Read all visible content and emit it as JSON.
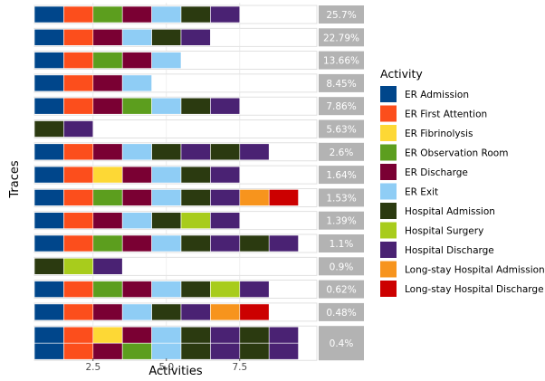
{
  "chart_data": {
    "type": "trace-explorer",
    "xlabel": "Activities",
    "ylabel": "Traces",
    "xticks": [
      2.5,
      5.0,
      7.5
    ],
    "xtick_labels": [
      "2.5",
      "5.0",
      "7.5"
    ],
    "xlim": [
      0.5,
      10.2
    ],
    "legend": {
      "title": "Activity",
      "position": "right",
      "items": [
        {
          "name": "ER Admission",
          "color": "#00468B"
        },
        {
          "name": "ER First Attention",
          "color": "#FC4E1C"
        },
        {
          "name": "ER Fibrinolysis",
          "color": "#FDD835"
        },
        {
          "name": "ER Observation Room",
          "color": "#5C9E1E"
        },
        {
          "name": "ER Discharge",
          "color": "#7A0033"
        },
        {
          "name": "ER Exit",
          "color": "#8FCDF5"
        },
        {
          "name": "Hospital Admission",
          "color": "#2B3A10"
        },
        {
          "name": "Hospital Surgery",
          "color": "#A8CC1C"
        },
        {
          "name": "Hospital Discharge",
          "color": "#4A2273"
        },
        {
          "name": "Long-stay Hospital Admission",
          "color": "#F7941D"
        },
        {
          "name": "Long-stay Hospital Discharge",
          "color": "#CC0000"
        }
      ]
    },
    "traces": [
      {
        "percent": "25.7%",
        "activities": [
          "ER Admission",
          "ER First Attention",
          "ER Observation Room",
          "ER Discharge",
          "ER Exit",
          "Hospital Admission",
          "Hospital Discharge"
        ]
      },
      {
        "percent": "22.79%",
        "activities": [
          "ER Admission",
          "ER First Attention",
          "ER Discharge",
          "ER Exit",
          "Hospital Admission",
          "Hospital Discharge"
        ]
      },
      {
        "percent": "13.66%",
        "activities": [
          "ER Admission",
          "ER First Attention",
          "ER Observation Room",
          "ER Discharge",
          "ER Exit"
        ]
      },
      {
        "percent": "8.45%",
        "activities": [
          "ER Admission",
          "ER First Attention",
          "ER Discharge",
          "ER Exit"
        ]
      },
      {
        "percent": "7.86%",
        "activities": [
          "ER Admission",
          "ER First Attention",
          "ER Discharge",
          "ER Observation Room",
          "ER Exit",
          "Hospital Admission",
          "Hospital Discharge"
        ]
      },
      {
        "percent": "5.63%",
        "activities": [
          "Hospital Admission",
          "Hospital Discharge"
        ]
      },
      {
        "percent": "2.6%",
        "activities": [
          "ER Admission",
          "ER First Attention",
          "ER Discharge",
          "ER Exit",
          "Hospital Admission",
          "Hospital Discharge",
          "Hospital Admission",
          "Hospital Discharge"
        ]
      },
      {
        "percent": "1.64%",
        "activities": [
          "ER Admission",
          "ER First Attention",
          "ER Fibrinolysis",
          "ER Discharge",
          "ER Exit",
          "Hospital Admission",
          "Hospital Discharge"
        ]
      },
      {
        "percent": "1.53%",
        "activities": [
          "ER Admission",
          "ER First Attention",
          "ER Observation Room",
          "ER Discharge",
          "ER Exit",
          "Hospital Admission",
          "Hospital Discharge",
          "Long-stay Hospital Admission",
          "Long-stay Hospital Discharge"
        ]
      },
      {
        "percent": "1.39%",
        "activities": [
          "ER Admission",
          "ER First Attention",
          "ER Discharge",
          "ER Exit",
          "Hospital Admission",
          "Hospital Surgery",
          "Hospital Discharge"
        ]
      },
      {
        "percent": "1.1%",
        "activities": [
          "ER Admission",
          "ER First Attention",
          "ER Observation Room",
          "ER Discharge",
          "ER Exit",
          "Hospital Admission",
          "Hospital Discharge",
          "Hospital Admission",
          "Hospital Discharge"
        ]
      },
      {
        "percent": "0.9%",
        "activities": [
          "Hospital Admission",
          "Hospital Surgery",
          "Hospital Discharge"
        ]
      },
      {
        "percent": "0.62%",
        "activities": [
          "ER Admission",
          "ER First Attention",
          "ER Observation Room",
          "ER Discharge",
          "ER Exit",
          "Hospital Admission",
          "Hospital Surgery",
          "Hospital Discharge"
        ]
      },
      {
        "percent": "0.48%",
        "activities": [
          "ER Admission",
          "ER First Attention",
          "ER Discharge",
          "ER Exit",
          "Hospital Admission",
          "Hospital Discharge",
          "Long-stay Hospital Admission",
          "Long-stay Hospital Discharge"
        ]
      },
      {
        "percent": "0.4%",
        "activities": [
          [
            "ER Admission",
            "ER Admission"
          ],
          [
            "ER First Attention",
            "ER First Attention"
          ],
          [
            "ER Fibrinolysis",
            "ER Discharge"
          ],
          [
            "ER Discharge",
            "ER Observation Room"
          ],
          [
            "ER Exit",
            "ER Exit"
          ],
          [
            "Hospital Admission",
            "Hospital Admission"
          ],
          [
            "Hospital Discharge",
            "Hospital Discharge"
          ],
          [
            "Hospital Admission",
            "Hospital Admission"
          ],
          [
            "Hospital Discharge",
            "Hospital Discharge"
          ]
        ]
      }
    ]
  }
}
